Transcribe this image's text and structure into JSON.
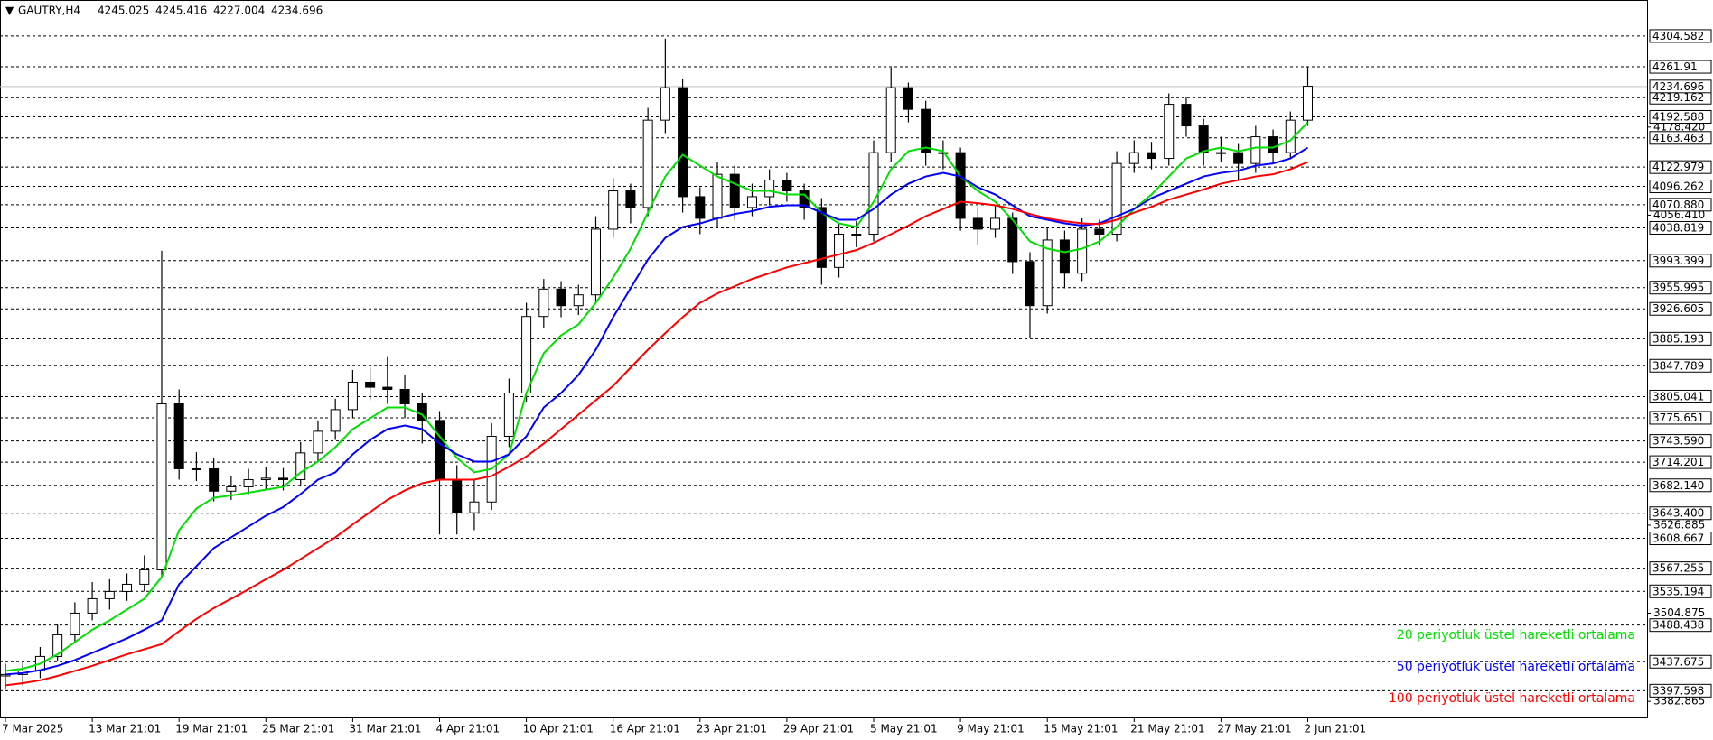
{
  "chart_data": {
    "type": "candlestick",
    "title": "GAUTRY,H4",
    "header_values": [
      4245.025,
      4245.416,
      4227.004,
      4234.696
    ],
    "categories": [
      "7 Mar 2025",
      null,
      null,
      null,
      null,
      "13 Mar 21:01",
      null,
      null,
      null,
      null,
      "19 Mar 21:01",
      null,
      null,
      null,
      null,
      "25 Mar 21:01",
      null,
      null,
      null,
      null,
      "31 Mar 21:01",
      null,
      null,
      null,
      null,
      "4 Apr 21:01",
      null,
      null,
      null,
      null,
      "10 Apr 21:01",
      null,
      null,
      null,
      null,
      "16 Apr 21:01",
      null,
      null,
      null,
      null,
      "23 Apr 21:01",
      null,
      null,
      null,
      null,
      "29 Apr 21:01",
      null,
      null,
      null,
      null,
      "5 May 21:01",
      null,
      null,
      null,
      null,
      "9 May 21:01",
      null,
      null,
      null,
      null,
      "15 May 21:01",
      null,
      null,
      null,
      null,
      "21 May 21:01",
      null,
      null,
      null,
      null,
      "27 May 21:01",
      null,
      null,
      null,
      null,
      "2 Jun 21:01"
    ],
    "open": [
      3418,
      3420,
      3425,
      3445,
      3475,
      3505,
      3525,
      3535,
      3545,
      3565,
      3795,
      3705,
      3705,
      3674,
      3680,
      3690,
      3692,
      3690,
      3727,
      3757,
      3787,
      3825,
      3818,
      3815,
      3795,
      3772,
      3690,
      3644,
      3659,
      3750,
      3810,
      3916,
      3954,
      3931,
      3946,
      4037,
      4090,
      4067,
      4188,
      4233,
      4082,
      4052,
      4113,
      4067,
      4082,
      4105,
      4090,
      4067,
      3984,
      4030,
      4030,
      4143,
      4233,
      4203,
      4143,
      4143,
      4052,
      4037,
      4052,
      3992,
      3931,
      4022,
      3976,
      4037,
      4030,
      4128,
      4143,
      4135,
      4210,
      4180,
      4143,
      4143,
      4128,
      4165,
      4143,
      4188
    ],
    "high": [
      3435,
      3438,
      3458,
      3490,
      3520,
      3548,
      3552,
      3560,
      3585,
      4007,
      3815,
      3728,
      3720,
      3695,
      3705,
      3708,
      3706,
      3742,
      3772,
      3802,
      3842,
      3845,
      3860,
      3835,
      3810,
      3785,
      3710,
      3690,
      3768,
      3830,
      3935,
      3968,
      3965,
      3960,
      4055,
      4108,
      4100,
      4205,
      4301,
      4245,
      4095,
      4130,
      4125,
      4100,
      4120,
      4115,
      4100,
      4080,
      4045,
      4048,
      4160,
      4261,
      4240,
      4215,
      4160,
      4150,
      4068,
      4070,
      4060,
      4005,
      4040,
      4035,
      4052,
      4050,
      4145,
      4160,
      4158,
      4225,
      4220,
      4190,
      4165,
      4155,
      4180,
      4175,
      4200,
      4262
    ],
    "low": [
      3400,
      3405,
      3415,
      3438,
      3465,
      3495,
      3510,
      3522,
      3535,
      3555,
      3690,
      3688,
      3660,
      3662,
      3670,
      3676,
      3675,
      3682,
      3715,
      3745,
      3775,
      3800,
      3795,
      3775,
      3740,
      3614,
      3614,
      3620,
      3648,
      3735,
      3798,
      3900,
      3915,
      3918,
      3935,
      4025,
      4045,
      4055,
      4170,
      4060,
      4030,
      4040,
      4050,
      4055,
      4070,
      4075,
      4050,
      3960,
      3970,
      4012,
      4020,
      4130,
      4185,
      4125,
      4120,
      4035,
      4015,
      4025,
      3975,
      3886,
      3920,
      3955,
      3965,
      4015,
      4020,
      4115,
      4120,
      4125,
      4165,
      4125,
      4130,
      4105,
      4115,
      4128,
      4135,
      4180
    ],
    "close": [
      3420,
      3425,
      3445,
      3475,
      3505,
      3525,
      3535,
      3545,
      3565,
      3795,
      3705,
      3705,
      3674,
      3680,
      3690,
      3692,
      3690,
      3727,
      3757,
      3787,
      3825,
      3818,
      3815,
      3795,
      3772,
      3690,
      3644,
      3659,
      3750,
      3810,
      3916,
      3954,
      3931,
      3946,
      4037,
      4090,
      4067,
      4188,
      4233,
      4082,
      4052,
      4113,
      4067,
      4082,
      4105,
      4090,
      4067,
      3984,
      4030,
      4030,
      4143,
      4233,
      4203,
      4143,
      4143,
      4052,
      4037,
      4052,
      3992,
      3931,
      4022,
      3976,
      4037,
      4030,
      4128,
      4143,
      4135,
      4210,
      4180,
      4143,
      4143,
      4128,
      4165,
      4143,
      4188,
      4235
    ],
    "series": [
      {
        "name": "20 periyotluk üstel hareketli ortalama",
        "color": "#00e000",
        "values": [
          3425,
          3428,
          3435,
          3448,
          3465,
          3482,
          3495,
          3510,
          3525,
          3555,
          3620,
          3650,
          3665,
          3668,
          3672,
          3676,
          3680,
          3700,
          3715,
          3735,
          3760,
          3775,
          3790,
          3790,
          3780,
          3750,
          3720,
          3700,
          3705,
          3725,
          3810,
          3865,
          3890,
          3905,
          3935,
          3970,
          4010,
          4060,
          4110,
          4140,
          4125,
          4110,
          4100,
          4090,
          4090,
          4085,
          4085,
          4060,
          4045,
          4040,
          4075,
          4120,
          4145,
          4150,
          4145,
          4110,
          4090,
          4075,
          4050,
          4020,
          4010,
          4005,
          4010,
          4020,
          4040,
          4065,
          4085,
          4110,
          4135,
          4145,
          4150,
          4145,
          4150,
          4150,
          4160,
          4185
        ]
      },
      {
        "name": "50 periyotluk üstel hareketli ortalama",
        "color": "#0000ff",
        "values": [
          3420,
          3422,
          3426,
          3432,
          3440,
          3450,
          3460,
          3470,
          3482,
          3495,
          3545,
          3570,
          3595,
          3610,
          3625,
          3640,
          3652,
          3670,
          3690,
          3700,
          3725,
          3745,
          3760,
          3765,
          3760,
          3740,
          3725,
          3715,
          3715,
          3725,
          3750,
          3790,
          3810,
          3835,
          3870,
          3915,
          3955,
          3995,
          4025,
          4040,
          4045,
          4052,
          4058,
          4062,
          4068,
          4070,
          4070,
          4060,
          4050,
          4050,
          4065,
          4085,
          4100,
          4110,
          4115,
          4110,
          4095,
          4085,
          4070,
          4055,
          4050,
          4045,
          4042,
          4045,
          4055,
          4065,
          4080,
          4090,
          4100,
          4110,
          4115,
          4118,
          4125,
          4128,
          4135,
          4150
        ]
      },
      {
        "name": "100 periyotluk üstel hareketli ortalama",
        "color": "#ff0000",
        "values": [
          3405,
          3408,
          3412,
          3418,
          3425,
          3432,
          3440,
          3448,
          3455,
          3462,
          3480,
          3497,
          3512,
          3525,
          3538,
          3552,
          3565,
          3580,
          3595,
          3610,
          3628,
          3645,
          3662,
          3675,
          3685,
          3690,
          3690,
          3690,
          3695,
          3708,
          3722,
          3740,
          3760,
          3780,
          3800,
          3820,
          3845,
          3870,
          3893,
          3915,
          3935,
          3948,
          3958,
          3968,
          3976,
          3984,
          3990,
          3996,
          4002,
          4008,
          4018,
          4030,
          4042,
          4055,
          4065,
          4075,
          4073,
          4070,
          4065,
          4058,
          4052,
          4048,
          4045,
          4044,
          4050,
          4060,
          4068,
          4078,
          4085,
          4092,
          4100,
          4105,
          4110,
          4113,
          4120,
          4130
        ]
      }
    ],
    "ylim": [
      3360.5,
      4354.5
    ],
    "yticks": [
      {
        "value": 4178.42,
        "label": "4178.420"
      },
      {
        "value": 4056.41,
        "label": "4056.410"
      },
      3626.885,
      3504.875,
      3382.865
    ],
    "levels": [
      4304.582,
      4261.91,
      4219.162,
      4192.588,
      4163.463,
      4122.979,
      4096.262,
      {
        "value": 4070.88,
        "label": "4070.880"
      },
      4038.819,
      3993.399,
      3955.995,
      3926.605,
      3885.193,
      3847.789,
      3805.041,
      3775.651,
      {
        "value": 3743.59,
        "label": "3743.590"
      },
      3714.201,
      {
        "value": 3682.14,
        "label": "3682.140"
      },
      {
        "value": 3643.4,
        "label": "3643.400"
      },
      3608.667,
      3567.255,
      3535.194,
      3488.438,
      3437.675,
      3397.598
    ],
    "price": 4234.696
  }
}
